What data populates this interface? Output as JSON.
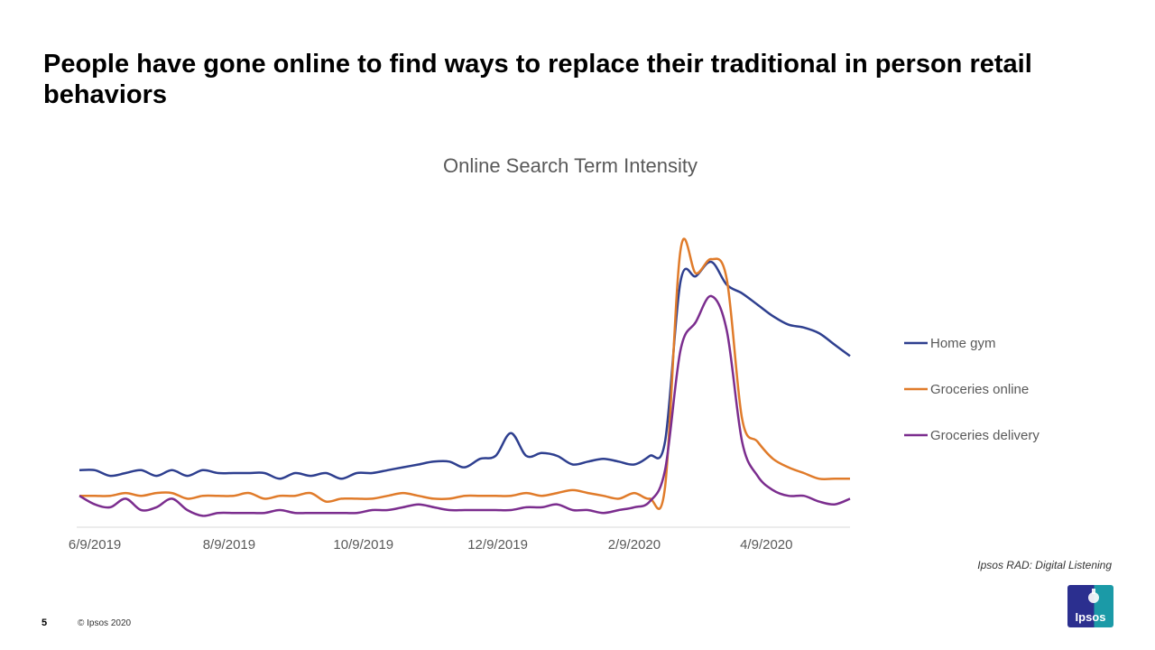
{
  "slide": {
    "title": "People have gone online to find ways to replace their traditional in person retail behaviors",
    "source": "Ipsos RAD: Digital Listening",
    "page_number": "5",
    "copyright": "© Ipsos 2020",
    "logo_text": "Ipsos"
  },
  "chart_data": {
    "type": "line",
    "title": "Online Search Term Intensity",
    "xlabel": "",
    "ylabel": "",
    "x_start": "2019-06-02",
    "x_step_days": 7,
    "x_tick_labels": [
      {
        "date": "2019-06-09",
        "label": "6/9/2019"
      },
      {
        "date": "2019-08-09",
        "label": "8/9/2019"
      },
      {
        "date": "2019-10-09",
        "label": "10/9/2019"
      },
      {
        "date": "2019-12-09",
        "label": "12/9/2019"
      },
      {
        "date": "2020-02-09",
        "label": "2/9/2020"
      },
      {
        "date": "2020-04-09",
        "label": "4/9/2020"
      }
    ],
    "ylim": [
      0,
      100
    ],
    "grid": false,
    "legend_position": "right",
    "series": [
      {
        "name": "Home gym",
        "color": "#2e3f8f",
        "values": [
          20,
          20,
          18,
          19,
          20,
          18,
          20,
          18,
          20,
          19,
          19,
          19,
          19,
          17,
          19,
          18,
          19,
          17,
          19,
          19,
          20,
          21,
          22,
          23,
          23,
          21,
          24,
          25,
          33,
          25,
          26,
          25,
          22,
          23,
          24,
          23,
          22,
          25,
          30,
          86,
          88,
          93,
          85,
          82,
          78,
          74,
          71,
          70,
          68,
          64,
          60
        ]
      },
      {
        "name": "Groceries online",
        "color": "#e07b2a",
        "values": [
          11,
          11,
          11,
          12,
          11,
          12,
          12,
          10,
          11,
          11,
          11,
          12,
          10,
          11,
          11,
          12,
          9,
          10,
          10,
          10,
          11,
          12,
          11,
          10,
          10,
          11,
          11,
          11,
          11,
          12,
          11,
          12,
          13,
          12,
          11,
          10,
          12,
          10,
          14,
          97,
          89,
          94,
          87,
          38,
          30,
          24,
          21,
          19,
          17,
          17,
          17
        ]
      },
      {
        "name": "Groceries delivery",
        "color": "#7b2d8e",
        "values": [
          11,
          8,
          7,
          10,
          6,
          7,
          10,
          6,
          4,
          5,
          5,
          5,
          5,
          6,
          5,
          5,
          5,
          5,
          5,
          6,
          6,
          7,
          8,
          7,
          6,
          6,
          6,
          6,
          6,
          7,
          7,
          8,
          6,
          6,
          5,
          6,
          7,
          9,
          20,
          62,
          72,
          81,
          69,
          30,
          18,
          13,
          11,
          11,
          9,
          8,
          10
        ]
      }
    ]
  }
}
